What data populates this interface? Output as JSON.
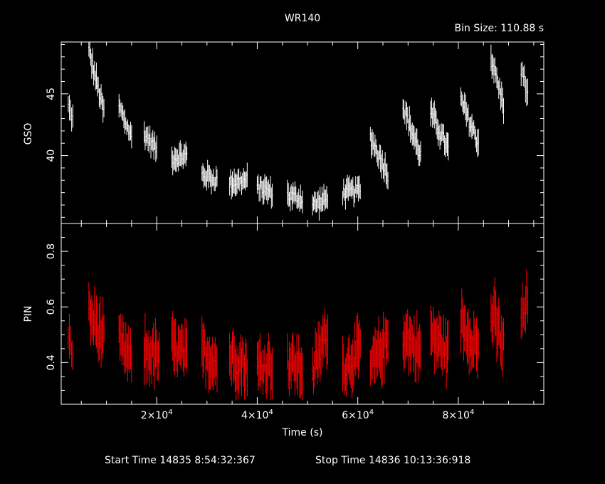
{
  "chart_data": {
    "type": "scatter",
    "title": "WR140",
    "subtitle": "Bin Size: 110.88 s",
    "xlabel": "Time (s)",
    "xlim": [
      1000,
      97000
    ],
    "footer_start": "Start Time 14835  8:54:32:367",
    "footer_stop": "Stop Time 14836 10:13:36:918",
    "x_ticks": [
      {
        "value": 20000,
        "mantissa": "2×10",
        "exp": "4"
      },
      {
        "value": 40000,
        "mantissa": "4×10",
        "exp": "4"
      },
      {
        "value": 60000,
        "mantissa": "6×10",
        "exp": "4"
      },
      {
        "value": 80000,
        "mantissa": "8×10",
        "exp": "4"
      }
    ],
    "panels": [
      {
        "name": "GSO",
        "ylabel": "GSO",
        "ylim": [
          34.5,
          49.2
        ],
        "y_ticks": [
          40,
          45
        ],
        "color": "#ffffff",
        "segments": [
          {
            "x0": 2400,
            "x1": 3300,
            "y0": 44.0,
            "y1": 43.0,
            "err": 0.9
          },
          {
            "x0": 6500,
            "x1": 9500,
            "y0": 48.5,
            "y1": 43.5,
            "err": 1.0
          },
          {
            "x0": 12500,
            "x1": 15000,
            "y0": 44.0,
            "y1": 41.5,
            "err": 0.9
          },
          {
            "x0": 17500,
            "x1": 20000,
            "y0": 41.8,
            "y1": 40.5,
            "err": 0.9
          },
          {
            "x0": 23000,
            "x1": 26000,
            "y0": 39.8,
            "y1": 40.0,
            "err": 0.9
          },
          {
            "x0": 29000,
            "x1": 32000,
            "y0": 38.5,
            "y1": 38.0,
            "err": 0.9
          },
          {
            "x0": 34500,
            "x1": 38000,
            "y0": 37.8,
            "y1": 38.0,
            "err": 0.9
          },
          {
            "x0": 40000,
            "x1": 43000,
            "y0": 37.5,
            "y1": 37.0,
            "err": 0.9
          },
          {
            "x0": 46000,
            "x1": 49000,
            "y0": 36.8,
            "y1": 36.5,
            "err": 0.9
          },
          {
            "x0": 51000,
            "x1": 54000,
            "y0": 36.0,
            "y1": 36.5,
            "err": 0.9
          },
          {
            "x0": 57000,
            "x1": 60500,
            "y0": 37.0,
            "y1": 37.2,
            "err": 0.9
          },
          {
            "x0": 62500,
            "x1": 66000,
            "y0": 41.5,
            "y1": 38.5,
            "err": 1.0
          },
          {
            "x0": 69000,
            "x1": 72500,
            "y0": 44.0,
            "y1": 40.0,
            "err": 1.0
          },
          {
            "x0": 74500,
            "x1": 78000,
            "y0": 43.5,
            "y1": 40.5,
            "err": 1.0
          },
          {
            "x0": 80500,
            "x1": 84000,
            "y0": 44.5,
            "y1": 41.0,
            "err": 1.0
          },
          {
            "x0": 86500,
            "x1": 89000,
            "y0": 48.0,
            "y1": 44.0,
            "err": 1.0
          },
          {
            "x0": 92500,
            "x1": 93800,
            "y0": 47.0,
            "y1": 45.0,
            "err": 1.0
          }
        ]
      },
      {
        "name": "PIN",
        "ylabel": "PIN",
        "ylim": [
          0.25,
          0.9
        ],
        "y_ticks": [
          0.4,
          0.6,
          0.8
        ],
        "color": "#ff0000",
        "segments": [
          {
            "x0": 2400,
            "x1": 3300,
            "y0": 0.47,
            "y1": 0.45,
            "err": 0.07
          },
          {
            "x0": 6500,
            "x1": 9500,
            "y0": 0.58,
            "y1": 0.48,
            "err": 0.09
          },
          {
            "x0": 12500,
            "x1": 15000,
            "y0": 0.48,
            "y1": 0.4,
            "err": 0.08
          },
          {
            "x0": 17500,
            "x1": 20500,
            "y0": 0.44,
            "y1": 0.42,
            "err": 0.09
          },
          {
            "x0": 23000,
            "x1": 26000,
            "y0": 0.46,
            "y1": 0.42,
            "err": 0.09
          },
          {
            "x0": 29000,
            "x1": 32000,
            "y0": 0.44,
            "y1": 0.4,
            "err": 0.09
          },
          {
            "x0": 34500,
            "x1": 38000,
            "y0": 0.42,
            "y1": 0.39,
            "err": 0.09
          },
          {
            "x0": 40000,
            "x1": 43000,
            "y0": 0.38,
            "y1": 0.4,
            "err": 0.09
          },
          {
            "x0": 46000,
            "x1": 49000,
            "y0": 0.4,
            "y1": 0.38,
            "err": 0.09
          },
          {
            "x0": 51000,
            "x1": 54000,
            "y0": 0.36,
            "y1": 0.52,
            "err": 0.09
          },
          {
            "x0": 57000,
            "x1": 60500,
            "y0": 0.38,
            "y1": 0.44,
            "err": 0.09
          },
          {
            "x0": 62500,
            "x1": 66000,
            "y0": 0.38,
            "y1": 0.48,
            "err": 0.09
          },
          {
            "x0": 69000,
            "x1": 72500,
            "y0": 0.5,
            "y1": 0.44,
            "err": 0.09
          },
          {
            "x0": 74500,
            "x1": 78000,
            "y0": 0.5,
            "y1": 0.44,
            "err": 0.09
          },
          {
            "x0": 80500,
            "x1": 84000,
            "y0": 0.55,
            "y1": 0.45,
            "err": 0.09
          },
          {
            "x0": 86500,
            "x1": 89000,
            "y0": 0.58,
            "y1": 0.46,
            "err": 0.1
          },
          {
            "x0": 92500,
            "x1": 93800,
            "y0": 0.55,
            "y1": 0.62,
            "err": 0.09
          }
        ]
      }
    ]
  }
}
